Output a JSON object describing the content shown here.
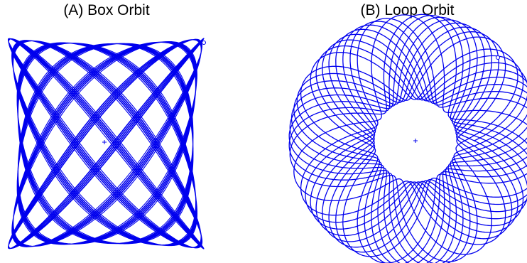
{
  "colors": {
    "orbit": "#0000ee",
    "background": "#ffffff",
    "title": "#000000"
  },
  "panels": [
    {
      "id": "A",
      "title": "(A) Box Orbit",
      "orbit_type": "box"
    },
    {
      "id": "B",
      "title": "(B) Loop Orbit",
      "orbit_type": "loop"
    }
  ]
}
